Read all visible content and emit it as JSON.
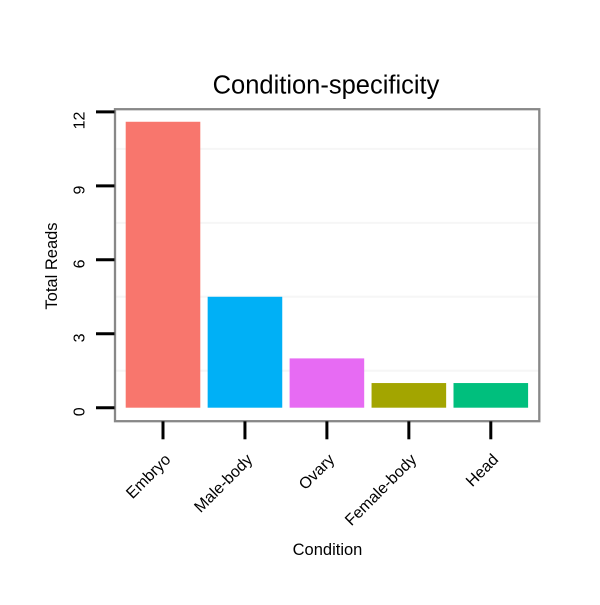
{
  "chart_data": {
    "type": "bar",
    "title": "Condition-specificity",
    "xlabel": "Condition",
    "ylabel": "Total Reads",
    "categories": [
      "Embryo",
      "Male-body",
      "Ovary",
      "Female-body",
      "Head"
    ],
    "values": [
      11.6,
      4.5,
      2,
      1,
      1
    ],
    "bar_colors": [
      "#F8766D",
      "#00B0F6",
      "#E76BF3",
      "#A3A500",
      "#00BF7D"
    ],
    "yticks": [
      0,
      3,
      6,
      9,
      12
    ],
    "ylim": [
      0,
      12
    ],
    "minor_gridlines": [
      1.5,
      4.5,
      7.5,
      10.5
    ],
    "grid": "minor-horizontal-only",
    "legend": "none",
    "style": {
      "background": "#FFFFFF",
      "panel_background": "#FFFFFF",
      "panel_border_color": "#888888",
      "minor_grid_color": "#F6F6F6",
      "tick_color": "#000000",
      "text_color": "#000000",
      "x_tick_label_angle": 45,
      "y_tick_label_angle": 90
    }
  }
}
